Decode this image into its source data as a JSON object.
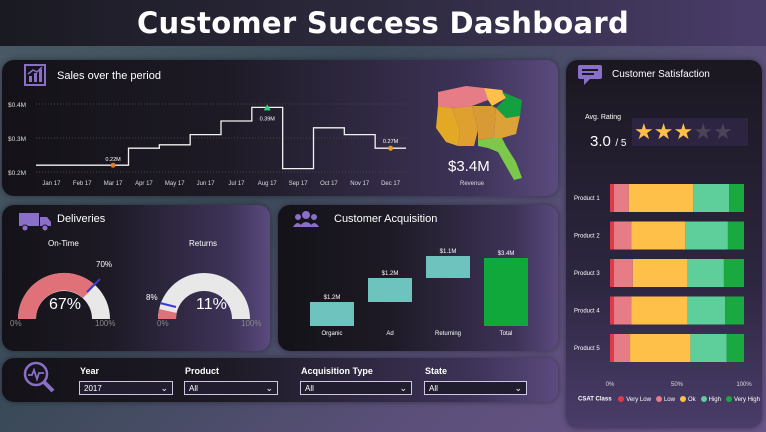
{
  "title": "Customer Success Dashboard",
  "colors": {
    "accent": "#8a6fc8",
    "very_low": "#e03a4a",
    "low": "#e57c86",
    "ok": "#ffc04a",
    "high": "#5ecf9a",
    "very_high": "#1aa840",
    "gauge_fill": "#e07178",
    "waterfall": "#6fc3be",
    "total": "#10a83a"
  },
  "sales": {
    "title": "Sales over the period",
    "revenue_value": "$3.4M",
    "revenue_label": "Revenue",
    "annotation_mar": "0.22M",
    "annotation_aug": "0.39M",
    "annotation_dec": "0.27M"
  },
  "deliveries": {
    "title": "Deliveries",
    "ontime_label": "On-Time",
    "ontime_value": "67%",
    "ontime_target": "70%",
    "ontime_min": "0%",
    "ontime_max": "100%",
    "returns_label": "Returns",
    "returns_value": "11%",
    "returns_target": "8%",
    "returns_min": "0%",
    "returns_max": "100%"
  },
  "acquisition": {
    "title": "Customer Acquisition"
  },
  "satisfaction": {
    "title": "Customer Satisfaction",
    "avg_label": "Avg. Rating",
    "avg_value": "3.0",
    "avg_suffix": "/ 5",
    "rating": 3,
    "max_rating": 5,
    "legend_title": "CSAT Class",
    "axis_ticks": [
      "0%",
      "50%",
      "100%"
    ]
  },
  "filters": {
    "year_label": "Year",
    "year_value": "2017",
    "product_label": "Product",
    "product_value": "All",
    "acq_label": "Acquisition Type",
    "acq_value": "All",
    "state_label": "State",
    "state_value": "All"
  },
  "chart_data": [
    {
      "type": "line",
      "name": "sales",
      "title": "Sales over the period",
      "x": [
        "Jan 17",
        "Feb 17",
        "Mar 17",
        "Apr 17",
        "May 17",
        "Jun 17",
        "Jul 17",
        "Aug 17",
        "Sep 17",
        "Oct 17",
        "Nov 17",
        "Dec 17"
      ],
      "values": [
        0.22,
        0.22,
        0.22,
        0.27,
        0.28,
        0.31,
        0.35,
        0.39,
        0.21,
        0.33,
        0.31,
        0.27
      ],
      "ylim": [
        0.2,
        0.4
      ],
      "yticks": [
        "$0.2M",
        "$0.3M",
        "$0.4M"
      ],
      "step": true
    },
    {
      "type": "bar",
      "name": "acquisition_waterfall",
      "title": "Customer Acquisition",
      "categories": [
        "Organic",
        "Ad",
        "Returning",
        "Total"
      ],
      "values": [
        1.2,
        1.2,
        1.1,
        3.4
      ],
      "data_labels": [
        "$1.2M",
        "$1.2M",
        "$1.1M",
        "$3.4M"
      ],
      "waterfall": true
    },
    {
      "type": "bar",
      "name": "csat",
      "orientation": "horizontal-stacked-100",
      "categories": [
        "Product 1",
        "Product 2",
        "Product 3",
        "Product 4",
        "Product 5"
      ],
      "series": [
        {
          "name": "Very Low",
          "values": [
            3,
            3,
            3,
            3,
            3
          ]
        },
        {
          "name": "Low",
          "values": [
            11,
            13,
            14,
            13,
            12
          ]
        },
        {
          "name": "Ok",
          "values": [
            48,
            40,
            41,
            42,
            45
          ]
        },
        {
          "name": "High",
          "values": [
            27,
            32,
            27,
            28,
            27
          ]
        },
        {
          "name": "Very High",
          "values": [
            11,
            12,
            15,
            14,
            13
          ]
        }
      ]
    }
  ]
}
